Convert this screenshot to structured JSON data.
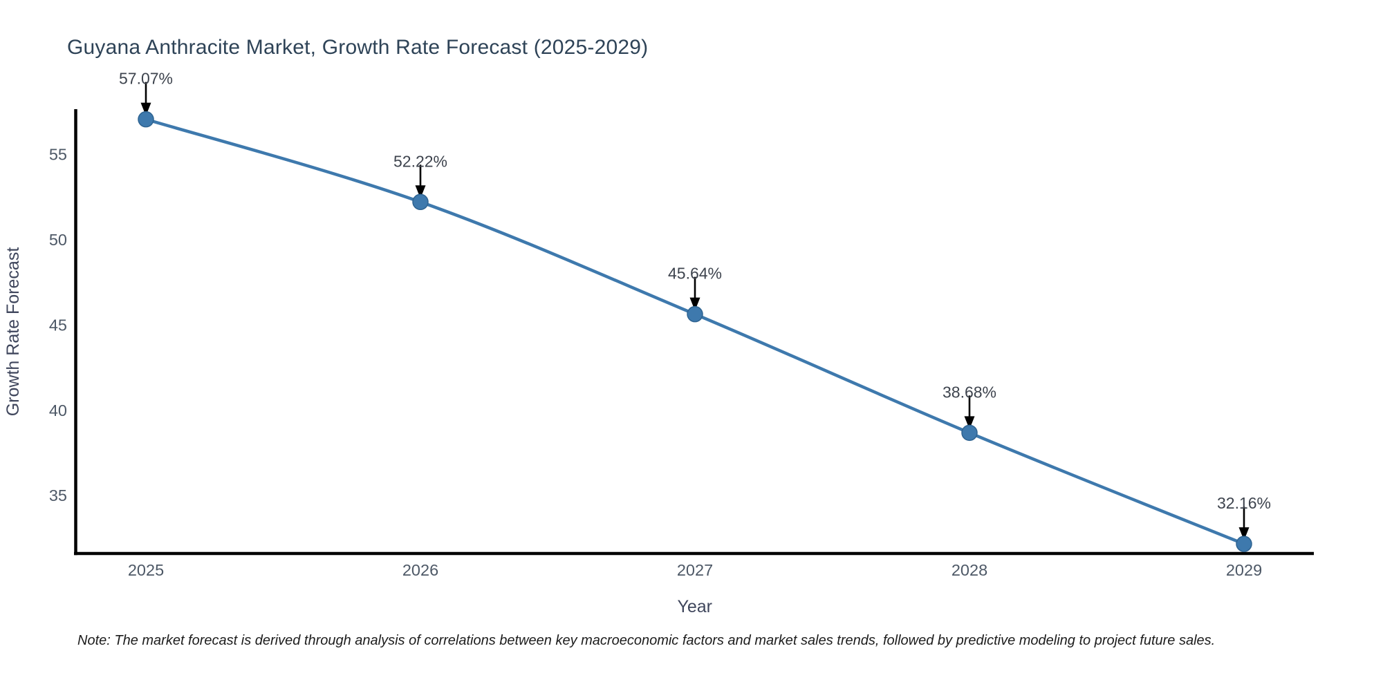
{
  "note": "Note: The market forecast is derived through analysis of correlations between key macroeconomic factors and market sales trends, followed by predictive modeling to project future sales.",
  "chart_data": {
    "type": "line",
    "title": "Guyana Anthracite Market, Growth Rate Forecast (2025-2029)",
    "xlabel": "Year",
    "ylabel": "Growth Rate Forecast",
    "categories": [
      "2025",
      "2026",
      "2027",
      "2028",
      "2029"
    ],
    "series": [
      {
        "name": "Growth Rate Forecast",
        "values": [
          57.07,
          52.22,
          45.64,
          38.68,
          32.16
        ]
      }
    ],
    "point_labels": [
      "57.07%",
      "52.22%",
      "45.64%",
      "38.68%",
      "32.16%"
    ],
    "yticks": [
      35,
      40,
      45,
      50,
      55
    ],
    "ylim": [
      31.6,
      57.6
    ],
    "grid": false,
    "legend": false,
    "annotation_style": "arrow-down-to-point",
    "colors": {
      "line": "#3e79ad",
      "marker_fill": "#3e79ad",
      "marker_edge": "#2e6391",
      "axis": "#000000",
      "arrow": "#000000",
      "title_text": "#2e4357",
      "tick_text": "#4d5866",
      "axis_label_text": "#3f465c",
      "annotation_text": "#3d434d",
      "note_text": "#1c1c1c"
    }
  }
}
